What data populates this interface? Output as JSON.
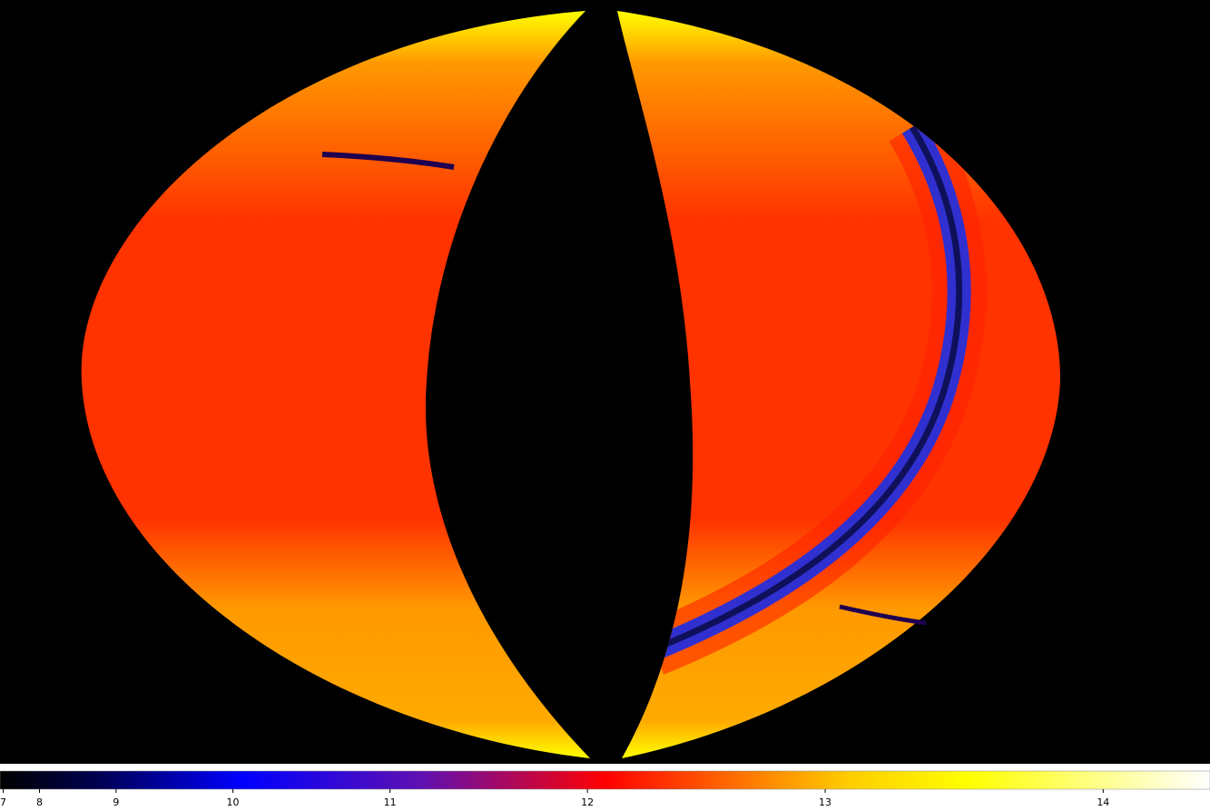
{
  "colorbar": {
    "ticks": [
      7,
      8,
      9,
      10,
      11,
      12,
      13,
      14
    ],
    "lim": [
      6.6,
      14.35
    ],
    "scale": "square"
  }
}
